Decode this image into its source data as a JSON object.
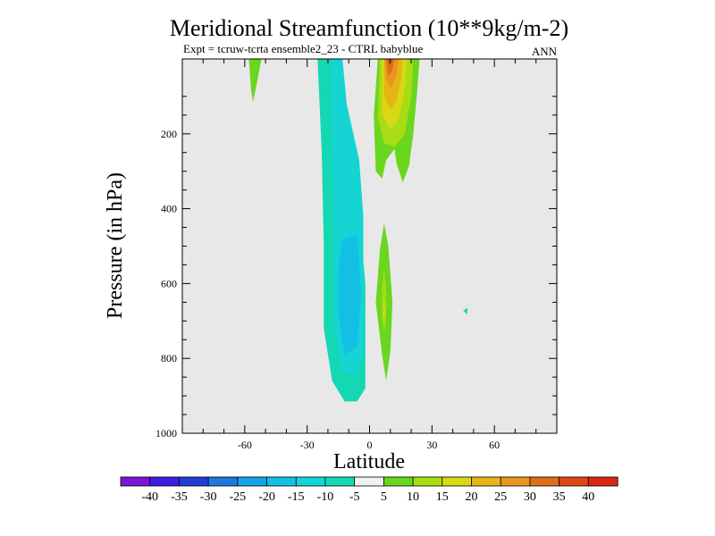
{
  "chart_data": {
    "type": "contour",
    "title": "Meridional Streamfunction (10**9kg/m-2)",
    "subtitle_left": "Expt = tcruw-tcrta ensemble2_23 - CTRL babyblue",
    "subtitle_right": "ANN",
    "xlabel": "Latitude",
    "ylabel": "Pressure (in hPa)",
    "xlim": [
      -90,
      90
    ],
    "ylim": [
      1000,
      0
    ],
    "x_ticks": [
      -60,
      -30,
      0,
      30,
      60
    ],
    "x_tick_labels": [
      "-60",
      "-30",
      "0",
      "30",
      "60"
    ],
    "y_ticks": [
      200,
      400,
      600,
      800,
      1000
    ],
    "y_tick_labels": [
      "200",
      "400",
      "600",
      "800",
      "1000"
    ],
    "levels": [
      -40,
      -35,
      -30,
      -25,
      -20,
      -15,
      -10,
      -5,
      5,
      10,
      15,
      20,
      25,
      30,
      35,
      40
    ],
    "level_labels": [
      "-40",
      "-35",
      "-30",
      "-25",
      "-20",
      "-15",
      "-10",
      "-5",
      "5",
      "10",
      "15",
      "20",
      "25",
      "30",
      "35",
      "40"
    ],
    "colorbar_colors": [
      "#7a14d6",
      "#3c1ee0",
      "#1f3fd8",
      "#1f78e0",
      "#14a0e6",
      "#14bfe6",
      "#14d4d4",
      "#14d7b4",
      "#f0f0f0",
      "#6ad61e",
      "#a8dc14",
      "#d8d814",
      "#e6b414",
      "#e6961e",
      "#e06e14",
      "#e04614",
      "#d82814"
    ],
    "background_color": "#e8e8e8",
    "regions": [
      {
        "name": "negative-cell-outer",
        "level": "-10",
        "color": "#14d7b4",
        "outline": [
          [
            -25,
            0
          ],
          [
            -16,
            0
          ],
          [
            -14,
            120
          ],
          [
            -7,
            300
          ],
          [
            -2,
            600
          ],
          [
            -2,
            880
          ],
          [
            -6,
            915
          ],
          [
            -12,
            915
          ],
          [
            -18,
            860
          ],
          [
            -22,
            720
          ],
          [
            -22,
            500
          ],
          [
            -23,
            250
          ]
        ]
      },
      {
        "name": "negative-cell-mid",
        "level": "-15",
        "color": "#14d4d4",
        "outline": [
          [
            -18,
            0
          ],
          [
            -13,
            0
          ],
          [
            -11,
            120
          ],
          [
            -5,
            270
          ],
          [
            -3,
            420
          ],
          [
            -3,
            800
          ],
          [
            -7,
            840
          ],
          [
            -13,
            840
          ],
          [
            -17,
            720
          ],
          [
            -17,
            400
          ],
          [
            -18,
            200
          ]
        ]
      },
      {
        "name": "negative-cell-core",
        "level": "-20",
        "color": "#14bfe6",
        "outline": [
          [
            -13,
            480
          ],
          [
            -6,
            470
          ],
          [
            -4,
            620
          ],
          [
            -6,
            770
          ],
          [
            -12,
            790
          ],
          [
            -15,
            680
          ],
          [
            -15,
            560
          ]
        ]
      },
      {
        "name": "positive-cell-outer",
        "level": "5",
        "color": "#6ad61e",
        "outline": [
          [
            4,
            0
          ],
          [
            24,
            0
          ],
          [
            23,
            80
          ],
          [
            21,
            200
          ],
          [
            19,
            285
          ],
          [
            16,
            330
          ],
          [
            13,
            280
          ],
          [
            12,
            240
          ],
          [
            8,
            270
          ],
          [
            6,
            320
          ],
          [
            3,
            300
          ],
          [
            2,
            150
          ]
        ]
      },
      {
        "name": "positive-cell-2",
        "level": "10",
        "color": "#a8dc14",
        "outline": [
          [
            5,
            0
          ],
          [
            21,
            0
          ],
          [
            20,
            100
          ],
          [
            17,
            200
          ],
          [
            12,
            235
          ],
          [
            7,
            225
          ],
          [
            4,
            160
          ]
        ]
      },
      {
        "name": "positive-cell-3",
        "level": "15",
        "color": "#d8d814",
        "outline": [
          [
            6,
            0
          ],
          [
            18,
            0
          ],
          [
            17,
            80
          ],
          [
            14,
            160
          ],
          [
            10,
            190
          ],
          [
            6,
            150
          ]
        ]
      },
      {
        "name": "positive-cell-4",
        "level": "20",
        "color": "#e6b414",
        "outline": [
          [
            7,
            0
          ],
          [
            16,
            0
          ],
          [
            15,
            60
          ],
          [
            13,
            110
          ],
          [
            10,
            135
          ],
          [
            7,
            100
          ]
        ]
      },
      {
        "name": "positive-cell-5",
        "level": "25",
        "color": "#e6961e",
        "outline": [
          [
            7,
            0
          ],
          [
            14,
            0
          ],
          [
            13,
            45
          ],
          [
            10,
            80
          ],
          [
            8,
            55
          ]
        ]
      },
      {
        "name": "positive-cell-6",
        "level": "30",
        "color": "#e06e14",
        "outline": [
          [
            8,
            0
          ],
          [
            12,
            0
          ],
          [
            11,
            30
          ],
          [
            9,
            45
          ]
        ]
      },
      {
        "name": "positive-cell-7",
        "level": "35",
        "color": "#e04614",
        "outline": [
          [
            8.5,
            0
          ],
          [
            10.5,
            0
          ],
          [
            9.5,
            18
          ]
        ]
      },
      {
        "name": "lower-positive-outer",
        "level": "5",
        "color": "#6ad61e",
        "outline": [
          [
            7,
            440
          ],
          [
            9,
            500
          ],
          [
            11,
            650
          ],
          [
            10,
            780
          ],
          [
            8,
            860
          ],
          [
            6,
            790
          ],
          [
            3,
            650
          ],
          [
            5,
            510
          ]
        ]
      },
      {
        "name": "lower-positive-inner",
        "level": "10",
        "color": "#a8dc14",
        "outline": [
          [
            7,
            560
          ],
          [
            8,
            620
          ],
          [
            8,
            700
          ],
          [
            7,
            730
          ],
          [
            6,
            690
          ],
          [
            6,
            610
          ]
        ]
      },
      {
        "name": "lower-positive-core",
        "level": "15",
        "color": "#d8d814",
        "outline": [
          [
            7,
            640
          ],
          [
            7.5,
            670
          ],
          [
            7,
            700
          ],
          [
            6.6,
            670
          ]
        ]
      },
      {
        "name": "southern-positive-lobe",
        "level": "5",
        "color": "#6ad61e",
        "outline": [
          [
            -58,
            0
          ],
          [
            -52,
            0
          ],
          [
            -54,
            60
          ],
          [
            -56,
            115
          ],
          [
            -57,
            80
          ]
        ]
      },
      {
        "name": "northern-negative-speck",
        "level": "-10",
        "color": "#14d7b4",
        "outline": [
          [
            45,
            673
          ],
          [
            47,
            664
          ],
          [
            47,
            682
          ]
        ]
      }
    ]
  }
}
